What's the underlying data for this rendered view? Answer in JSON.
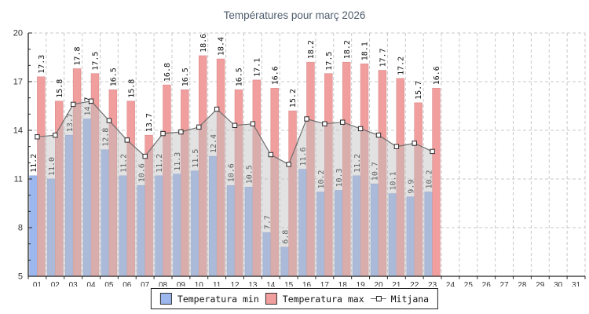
{
  "title": "Températures pour març 2026",
  "chart_data": {
    "type": "bar",
    "title": "Températures pour març 2026",
    "categories": [
      "01",
      "02",
      "03",
      "04",
      "05",
      "06",
      "07",
      "08",
      "09",
      "10",
      "11",
      "12",
      "13",
      "14",
      "15",
      "16",
      "17",
      "18",
      "19",
      "20",
      "21",
      "22",
      "23",
      "24",
      "25",
      "26",
      "27",
      "28",
      "29",
      "30",
      "31"
    ],
    "days_with_data": 23,
    "ylim": [
      5,
      20
    ],
    "yticks": [
      5,
      8,
      11,
      14,
      17,
      20
    ],
    "grid": true,
    "bar_labels": true,
    "legend_position": "bottom",
    "series": [
      {
        "name": "Temperatura min",
        "type": "bar",
        "color": "#9cb6ee",
        "edge": "#87a2d9",
        "values": [
          11.2,
          11.0,
          13.7,
          14.7,
          12.8,
          11.2,
          10.6,
          11.2,
          11.3,
          11.5,
          12.4,
          10.6,
          10.5,
          7.7,
          6.8,
          11.6,
          10.2,
          10.3,
          11.2,
          10.7,
          10.1,
          9.9,
          10.2
        ]
      },
      {
        "name": "Temperatura max",
        "type": "bar",
        "color": "#f09e9e",
        "edge": "#dd8c8c",
        "values": [
          17.3,
          15.8,
          17.8,
          17.5,
          16.5,
          15.8,
          13.7,
          16.8,
          16.5,
          18.6,
          18.4,
          16.5,
          17.1,
          16.6,
          15.2,
          18.2,
          17.5,
          18.2,
          18.1,
          17.7,
          17.2,
          15.7,
          16.6
        ]
      },
      {
        "name": "Mitjana",
        "type": "line",
        "color": "#6e6e6e",
        "area_fill": "#bebebe",
        "values": [
          13.6,
          13.7,
          15.6,
          15.8,
          14.6,
          13.4,
          12.4,
          13.8,
          13.9,
          14.2,
          15.3,
          14.3,
          14.4,
          12.5,
          11.9,
          14.7,
          14.4,
          14.5,
          14.1,
          13.7,
          13.0,
          13.2,
          12.7
        ]
      }
    ],
    "colors": {
      "title": "#4f5d6d",
      "grid": "#c8c8c8",
      "axis": "#222222",
      "tick_label": "#333333",
      "bar_label": "#111111",
      "marker_fill": "#ffffff",
      "marker_edge": "#2a2a2a"
    }
  }
}
